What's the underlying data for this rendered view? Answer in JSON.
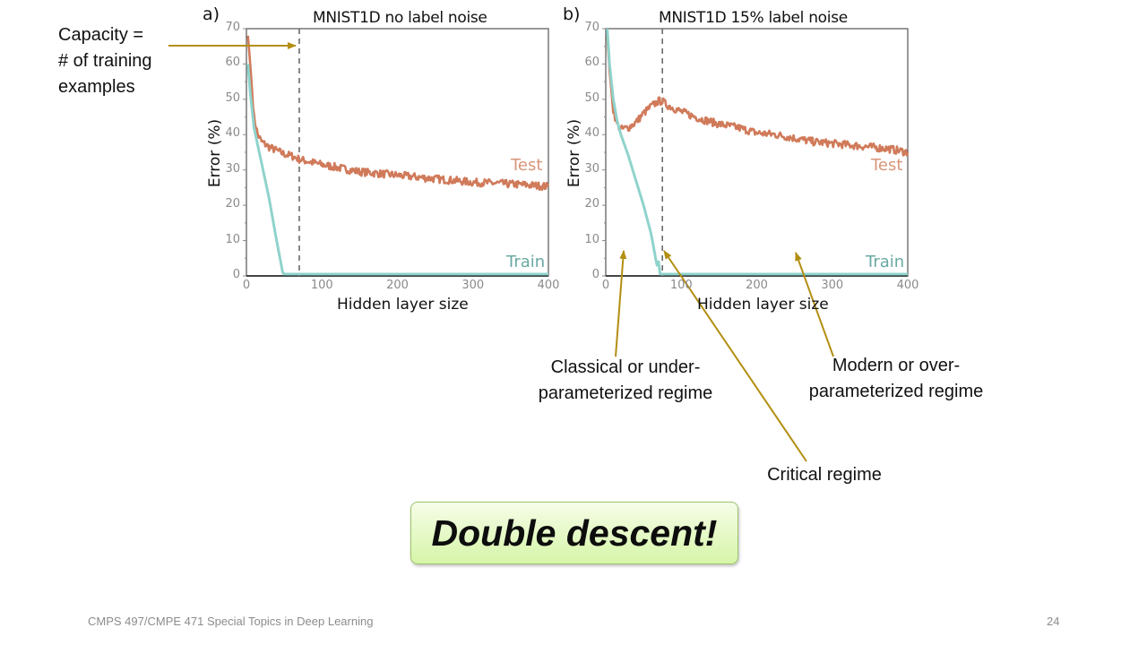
{
  "slide": {
    "footer_course": "CMPS 497/CMPE 471 Special Topics in Deep Learning",
    "page_number": "24",
    "callout": "Double descent!",
    "capacity_note": [
      "Capacity =",
      "# of training",
      "examples"
    ],
    "annotations": {
      "classical": [
        "Classical or under-",
        "parameterized regime"
      ],
      "modern": [
        "Modern or over-",
        "parameterized regime"
      ],
      "critical": "Critical regime"
    },
    "colors": {
      "test": "#d07a5a",
      "train": "#8fd3cc",
      "arrow": "#b38f12",
      "dashed": "#6b6b6b",
      "callout_bg_top": "#f6fde8",
      "callout_bg_bottom": "#d6f5a8"
    }
  },
  "chart_data": [
    {
      "type": "line",
      "panel": "a)",
      "title": "MNIST1D no label noise",
      "xlabel": "Hidden layer size",
      "ylabel": "Error (%)",
      "xlim": [
        0,
        400
      ],
      "ylim": [
        0,
        70
      ],
      "xticks": [
        "0",
        "100",
        "200",
        "300",
        "400"
      ],
      "yticks": [
        "0",
        "10",
        "20",
        "30",
        "40",
        "50",
        "60",
        "70"
      ],
      "vline_x": 70,
      "series": [
        {
          "name": "Test",
          "x": [
            2,
            5,
            10,
            15,
            20,
            30,
            40,
            50,
            60,
            70,
            80,
            100,
            125,
            150,
            175,
            200,
            225,
            250,
            275,
            300,
            325,
            350,
            375,
            400
          ],
          "values": [
            68,
            60,
            45,
            40,
            38,
            36.5,
            35.5,
            34.5,
            34,
            33,
            32.5,
            31.5,
            30.5,
            29.5,
            29,
            28.5,
            28,
            27.5,
            27,
            26.5,
            26.3,
            26,
            25.7,
            25.3
          ]
        },
        {
          "name": "Train",
          "x": [
            2,
            5,
            10,
            15,
            20,
            30,
            40,
            48,
            50,
            100,
            200,
            300,
            400
          ],
          "values": [
            60,
            52,
            42,
            37,
            32,
            22,
            10,
            1,
            0.5,
            0.5,
            0.5,
            0.5,
            0.5
          ]
        }
      ],
      "legend": "inline labels at right (Test, Train)"
    },
    {
      "type": "line",
      "panel": "b)",
      "title": "MNIST1D 15% label noise",
      "xlabel": "Hidden layer size",
      "ylabel": "Error (%)",
      "xlim": [
        0,
        400
      ],
      "ylim": [
        0,
        70
      ],
      "xticks": [
        "0",
        "100",
        "200",
        "300",
        "400"
      ],
      "yticks": [
        "0",
        "10",
        "20",
        "30",
        "40",
        "50",
        "60",
        "70"
      ],
      "vline_x": 75,
      "series": [
        {
          "name": "Test",
          "x": [
            2,
            5,
            10,
            15,
            20,
            30,
            40,
            50,
            60,
            70,
            75,
            80,
            100,
            125,
            150,
            175,
            200,
            225,
            250,
            275,
            300,
            325,
            350,
            375,
            400
          ],
          "values": [
            68,
            58,
            47,
            43,
            41.5,
            42,
            43.5,
            46,
            48,
            49.5,
            49.5,
            48.5,
            46.5,
            44.5,
            43,
            42,
            40.5,
            40,
            39,
            38,
            37.5,
            37,
            36.5,
            36,
            35
          ]
        },
        {
          "name": "Train",
          "x": [
            2,
            5,
            10,
            15,
            20,
            30,
            40,
            50,
            60,
            66,
            68,
            70,
            72,
            100,
            200,
            300,
            400
          ],
          "values": [
            70,
            60,
            50,
            44,
            40,
            34,
            27,
            20,
            12,
            5,
            3,
            4,
            0.5,
            0.5,
            0.5,
            0.5,
            0.5
          ]
        }
      ],
      "legend": "inline labels at right (Test, Train)"
    }
  ]
}
